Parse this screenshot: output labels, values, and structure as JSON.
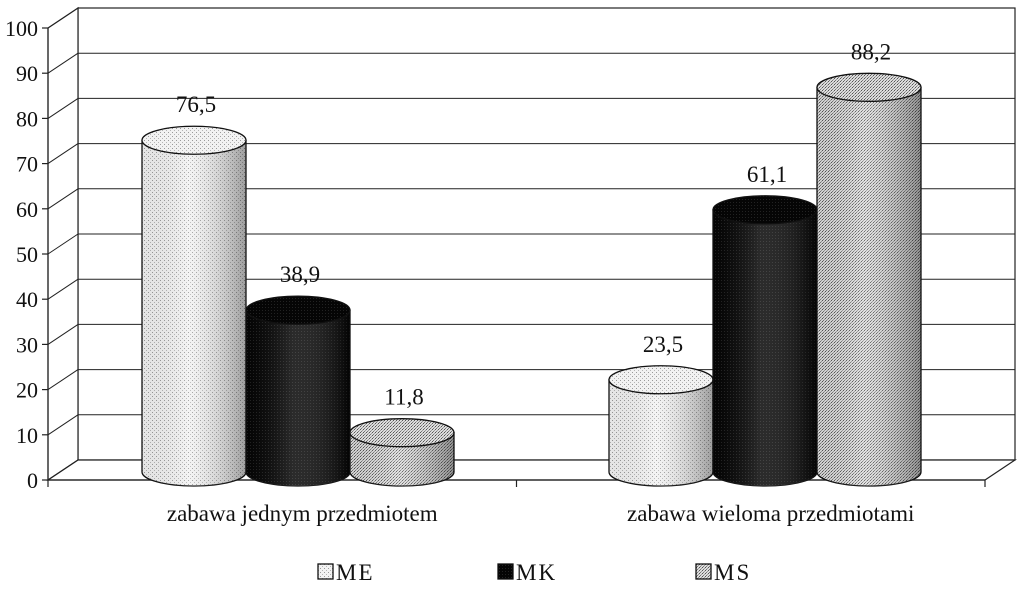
{
  "chart_data": {
    "type": "bar",
    "categories": [
      "zabawa jednym przedmiotem",
      "zabawa wieloma przedmiotami"
    ],
    "series": [
      {
        "name": "ME",
        "values": [
          76.5,
          23.5
        ],
        "labels": [
          "76,5",
          "23,5"
        ],
        "pattern": "light"
      },
      {
        "name": "MK",
        "values": [
          38.9,
          61.1
        ],
        "labels": [
          "38,9",
          "61,1"
        ],
        "pattern": "dark"
      },
      {
        "name": "MS",
        "values": [
          11.8,
          88.2
        ],
        "labels": [
          "11,8",
          "88,2"
        ],
        "pattern": "medium"
      }
    ],
    "y_ticks": [
      "0",
      "10",
      "20",
      "30",
      "40",
      "50",
      "60",
      "70",
      "80",
      "90",
      "100"
    ],
    "ylim": [
      0,
      100
    ],
    "grid": true,
    "legend_position": "bottom",
    "style": "3d-cylinder",
    "colors": {
      "ME": "#e6e6e6",
      "MK": "#0a0a0a",
      "MS": "#c8c8c8"
    }
  }
}
